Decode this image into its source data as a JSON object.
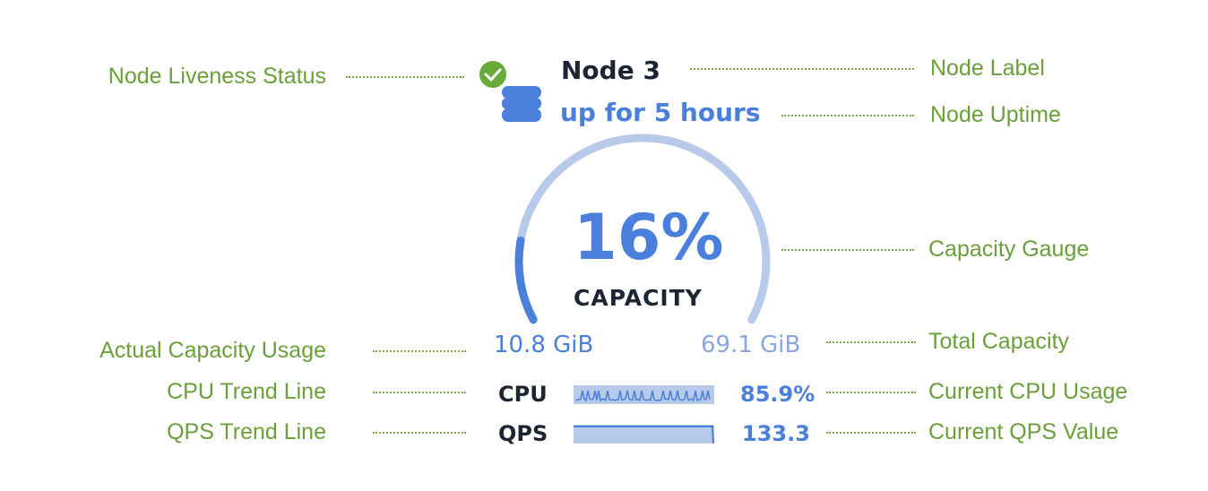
{
  "node": {
    "label": "Node 3",
    "uptime": "up for 5 hours",
    "liveness": "live",
    "status_icon": "check-circle-icon",
    "node_icon": "database-icon"
  },
  "gauge": {
    "percent_text": "16%",
    "percent": 16,
    "caption": "CAPACITY",
    "used": "10.8 GiB",
    "total": "69.1 GiB"
  },
  "metrics": [
    {
      "name": "CPU",
      "value": "85.9%"
    },
    {
      "name": "QPS",
      "value": "133.3"
    }
  ],
  "annotations": {
    "liveness": "Node Liveness Status",
    "label": "Node Label",
    "uptime": "Node Uptime",
    "gauge": "Capacity Gauge",
    "used": "Actual Capacity Usage",
    "total": "Total Capacity",
    "cpu_trend": "CPU Trend Line",
    "cpu_value": "Current CPU Usage",
    "qps_trend": "QPS Trend Line",
    "qps_value": "Current QPS Value"
  },
  "colors": {
    "annotation": "#6a9f3a",
    "accent": "#4a7fdb",
    "track": "#b8caea",
    "success": "#6aaa3a",
    "text_dark": "#1d2433"
  }
}
